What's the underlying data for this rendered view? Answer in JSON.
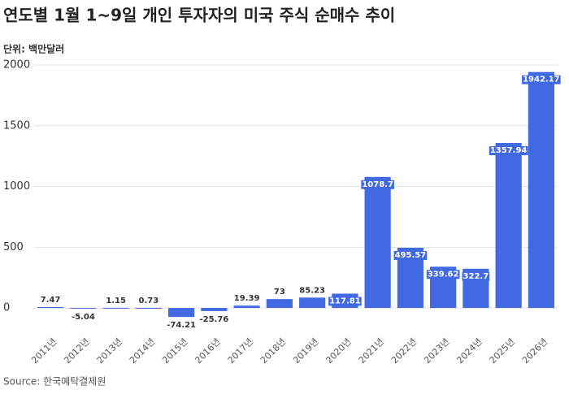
{
  "chart_data": {
    "type": "bar",
    "title": "연도별 1월 1~9일 개인 투자자의 미국 주식 순매수 추이",
    "subtitle": "단위: 백만달러",
    "source": "Source: 한국예탁결제원",
    "categories": [
      "2011년",
      "2012년",
      "2013년",
      "2014년",
      "2015년",
      "2016년",
      "2017년",
      "2018년",
      "2019년",
      "2020년",
      "2021년",
      "2022년",
      "2023년",
      "2024년",
      "2025년",
      "2026년"
    ],
    "values": [
      7.47,
      -5.04,
      1.15,
      0.73,
      -74.21,
      -25.76,
      19.39,
      73,
      85.23,
      117.81,
      1078.7,
      495.57,
      339.62,
      322.7,
      1357.94,
      1942.17
    ],
    "color": "#4169e1",
    "ylim": [
      -200,
      2000
    ],
    "yticks": [
      0,
      500,
      1000,
      1500,
      2000
    ],
    "grid": true
  }
}
